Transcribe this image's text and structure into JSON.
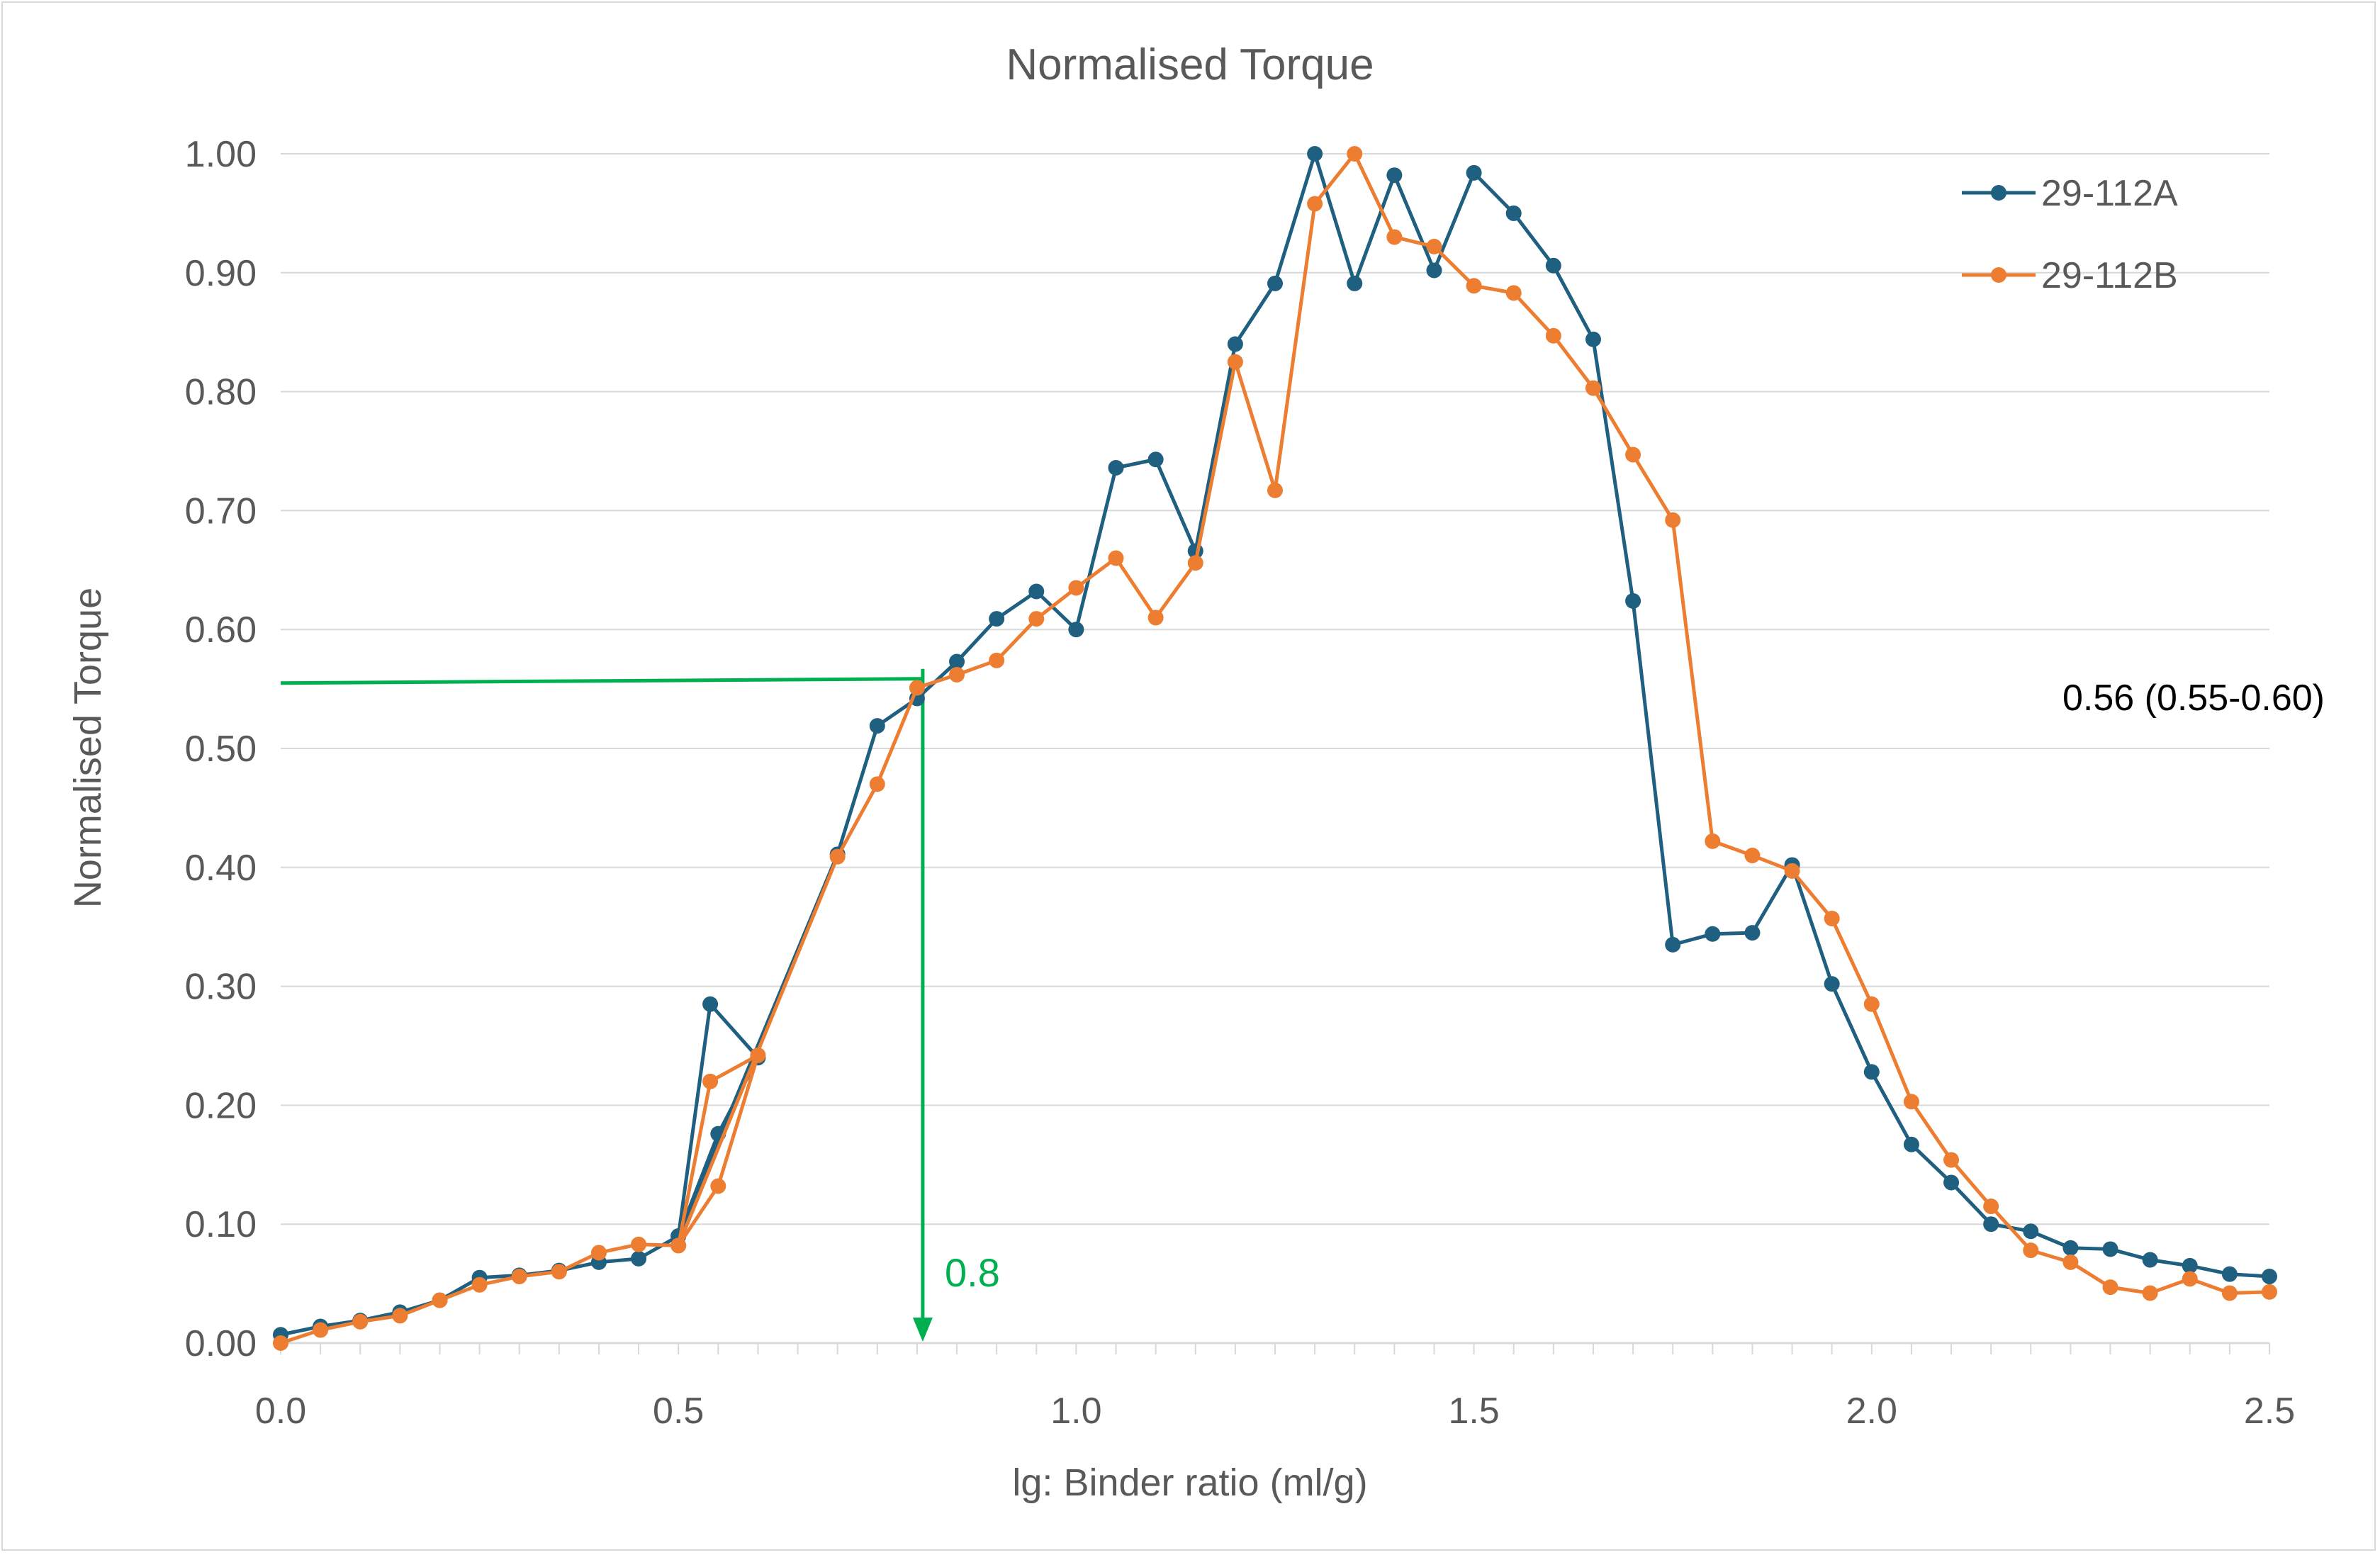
{
  "chart_data": {
    "type": "line",
    "title": "Normalised Torque",
    "xlabel": "lg: Binder ratio (ml/g)",
    "ylabel": "Normalised Torque",
    "xlim": [
      0,
      2.5
    ],
    "ylim": [
      0,
      1.0
    ],
    "x_ticks": [
      "0.0",
      "0.5",
      "1.0",
      "1.5",
      "2.0",
      "2.5"
    ],
    "y_ticks": [
      "0.00",
      "0.10",
      "0.20",
      "0.30",
      "0.40",
      "0.50",
      "0.60",
      "0.70",
      "0.80",
      "0.90",
      "1.00"
    ],
    "grid": "horizontal",
    "legend_position": "top-right",
    "series": [
      {
        "name": "29-112A",
        "color": "#1f5f7f",
        "points": [
          [
            0.0,
            0.007
          ],
          [
            0.05,
            0.014
          ],
          [
            0.1,
            0.019
          ],
          [
            0.15,
            0.026
          ],
          [
            0.2,
            0.036
          ],
          [
            0.25,
            0.055
          ],
          [
            0.3,
            0.057
          ],
          [
            0.35,
            0.061
          ],
          [
            0.4,
            0.068
          ],
          [
            0.45,
            0.071
          ],
          [
            0.5,
            0.09
          ],
          [
            0.54,
            0.285
          ],
          [
            0.6,
            0.24
          ],
          [
            0.55,
            0.176
          ],
          [
            0.5,
            0.09
          ],
          [
            0.7,
            0.411
          ],
          [
            0.75,
            0.519
          ],
          [
            0.8,
            0.542
          ],
          [
            0.85,
            0.573
          ],
          [
            0.9,
            0.609
          ],
          [
            0.95,
            0.632
          ],
          [
            1.0,
            0.6
          ],
          [
            1.05,
            0.736
          ],
          [
            1.1,
            0.743
          ],
          [
            1.15,
            0.666
          ],
          [
            1.2,
            0.84
          ],
          [
            1.25,
            0.891
          ],
          [
            1.3,
            1.0
          ],
          [
            1.35,
            0.891
          ],
          [
            1.4,
            0.982
          ],
          [
            1.45,
            0.902
          ],
          [
            1.5,
            0.984
          ],
          [
            1.55,
            0.95
          ],
          [
            1.6,
            0.906
          ],
          [
            1.65,
            0.844
          ],
          [
            1.7,
            0.624
          ],
          [
            1.75,
            0.335
          ],
          [
            1.8,
            0.344
          ],
          [
            1.85,
            0.345
          ],
          [
            1.9,
            0.402
          ],
          [
            1.95,
            0.302
          ],
          [
            2.0,
            0.228
          ],
          [
            2.05,
            0.167
          ],
          [
            2.1,
            0.135
          ],
          [
            2.15,
            0.1
          ],
          [
            2.2,
            0.094
          ],
          [
            2.25,
            0.08
          ],
          [
            2.3,
            0.079
          ],
          [
            2.35,
            0.07
          ],
          [
            2.4,
            0.065
          ],
          [
            2.45,
            0.058
          ],
          [
            2.5,
            0.056
          ]
        ]
      },
      {
        "name": "29-112B",
        "color": "#ed7d31",
        "points": [
          [
            0.0,
            0.0
          ],
          [
            0.05,
            0.011
          ],
          [
            0.1,
            0.018
          ],
          [
            0.15,
            0.023
          ],
          [
            0.2,
            0.036
          ],
          [
            0.25,
            0.049
          ],
          [
            0.3,
            0.056
          ],
          [
            0.35,
            0.06
          ],
          [
            0.4,
            0.076
          ],
          [
            0.45,
            0.083
          ],
          [
            0.5,
            0.082
          ],
          [
            0.54,
            0.22
          ],
          [
            0.6,
            0.242
          ],
          [
            0.55,
            0.132
          ],
          [
            0.5,
            0.082
          ],
          [
            0.7,
            0.409
          ],
          [
            0.75,
            0.47
          ],
          [
            0.8,
            0.551
          ],
          [
            0.85,
            0.562
          ],
          [
            0.9,
            0.574
          ],
          [
            0.95,
            0.609
          ],
          [
            1.0,
            0.635
          ],
          [
            1.05,
            0.66
          ],
          [
            1.1,
            0.61
          ],
          [
            1.15,
            0.656
          ],
          [
            1.2,
            0.825
          ],
          [
            1.25,
            0.717
          ],
          [
            1.3,
            0.958
          ],
          [
            1.35,
            1.0
          ],
          [
            1.4,
            0.93
          ],
          [
            1.45,
            0.922
          ],
          [
            1.5,
            0.889
          ],
          [
            1.55,
            0.883
          ],
          [
            1.6,
            0.847
          ],
          [
            1.65,
            0.803
          ],
          [
            1.7,
            0.747
          ],
          [
            1.75,
            0.692
          ],
          [
            1.8,
            0.422
          ],
          [
            1.85,
            0.41
          ],
          [
            1.9,
            0.397
          ],
          [
            1.95,
            0.357
          ],
          [
            2.0,
            0.285
          ],
          [
            2.05,
            0.203
          ],
          [
            2.1,
            0.154
          ],
          [
            2.15,
            0.115
          ],
          [
            2.2,
            0.078
          ],
          [
            2.25,
            0.068
          ],
          [
            2.3,
            0.047
          ],
          [
            2.35,
            0.042
          ],
          [
            2.4,
            0.054
          ],
          [
            2.45,
            0.042
          ],
          [
            2.5,
            0.043
          ]
        ]
      }
    ],
    "annotations": {
      "horizontal_line_y": 0.555,
      "vertical_line_x": 0.8,
      "vertical_label": "0.8",
      "range_note": "0.56 (0.55-0.60)",
      "color": "#00b050"
    }
  }
}
